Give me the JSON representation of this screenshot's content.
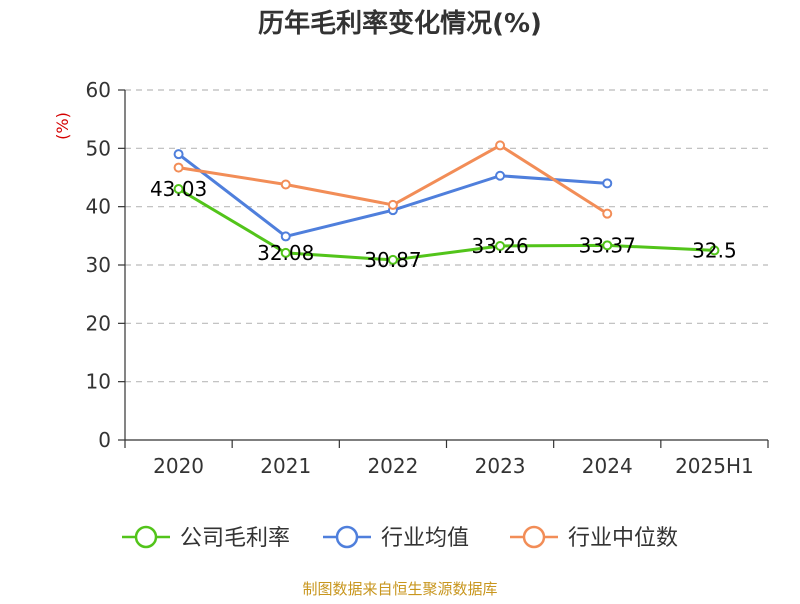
{
  "chart_data": {
    "type": "line",
    "title": "历年毛利率变化情况(%)",
    "unit_label": "(%)",
    "xlabel": "",
    "ylabel": "",
    "categories": [
      "2020",
      "2021",
      "2022",
      "2023",
      "2024",
      "2025H1"
    ],
    "ylim": [
      0,
      60
    ],
    "yticks": [
      0,
      10,
      20,
      30,
      40,
      50,
      60
    ],
    "grid": true,
    "legend_position": "bottom",
    "series": [
      {
        "name": "公司毛利率",
        "color": "#52c41a",
        "values": [
          43.03,
          32.08,
          30.87,
          33.26,
          33.37,
          32.5
        ],
        "labels": [
          "43.03",
          "32.08",
          "30.87",
          "33.26",
          "33.37",
          "32.5"
        ],
        "show_labels": true
      },
      {
        "name": "行业均值",
        "color": "#4f7fdc",
        "values": [
          49.0,
          34.9,
          39.4,
          45.3,
          44.0,
          null
        ],
        "show_labels": false
      },
      {
        "name": "行业中位数",
        "color": "#f28d57",
        "values": [
          46.7,
          43.8,
          40.3,
          50.5,
          38.8,
          null
        ],
        "show_labels": false
      }
    ],
    "source": "制图数据来自恒生聚源数据库"
  }
}
